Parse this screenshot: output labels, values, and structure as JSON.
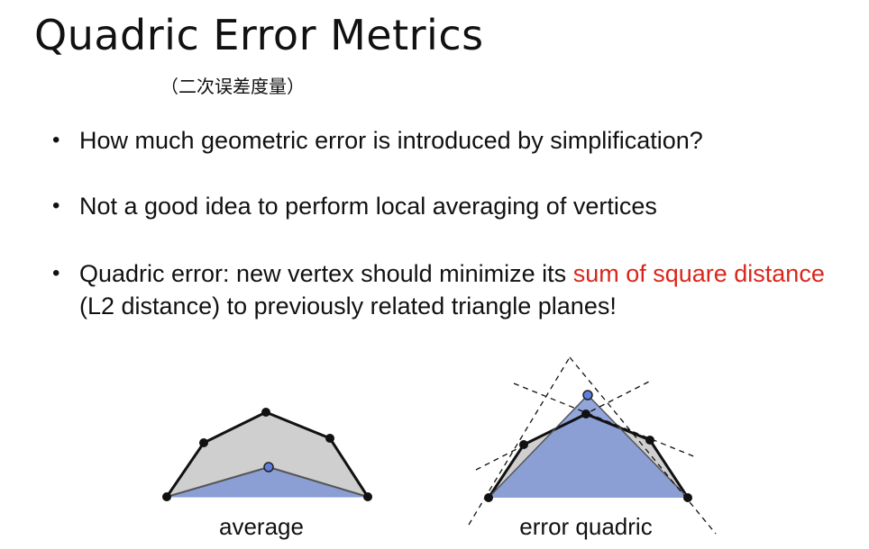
{
  "slide": {
    "title": "Quadric Error Metrics",
    "subtitle": "（二次误差度量）"
  },
  "bullets": [
    {
      "text": "How much geometric error is introduced by simplification?"
    },
    {
      "text": "Not a good idea to perform local averaging of vertices"
    },
    {
      "text_before": "Quadric error: new vertex should minimize its ",
      "highlight": "sum of square distance",
      "text_after": " (L2 distance) to previously related triangle planes!"
    }
  ],
  "figures": {
    "left_caption": "average",
    "right_caption": "error quadric"
  },
  "colors": {
    "highlight": "#d9261c",
    "gray_fill": "#cfcfcf",
    "blue_fill": "#7f96d6",
    "vertex": "#111111",
    "new_vertex": "#5f7fdc"
  }
}
